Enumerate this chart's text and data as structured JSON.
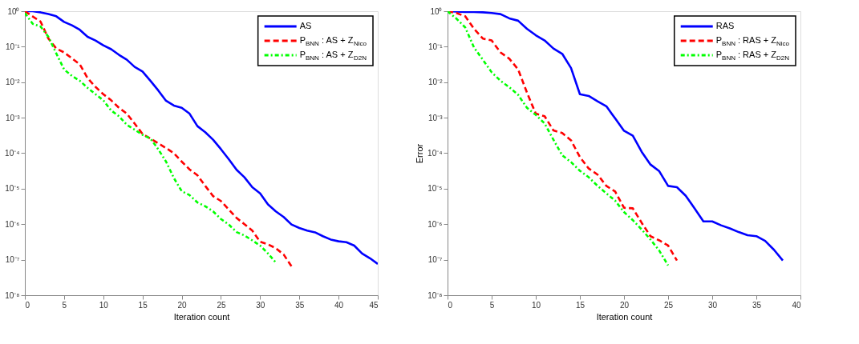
{
  "chart_data": [
    {
      "type": "line",
      "xlabel": "Iteration count",
      "log": "y",
      "grid": false,
      "legend": "top right",
      "x": [
        0,
        1,
        2,
        3,
        4,
        5,
        6,
        7,
        8,
        9,
        10,
        11,
        12,
        13,
        14,
        15,
        16,
        17,
        18,
        19,
        20,
        21,
        22,
        23,
        24,
        25,
        26,
        27,
        28,
        29,
        30,
        31,
        32,
        33,
        34,
        35,
        36,
        37,
        38,
        39,
        40,
        41,
        42,
        43,
        44,
        45
      ],
      "xlim": [
        0,
        45
      ],
      "xticks": [
        0,
        5,
        10,
        15,
        20,
        25,
        30,
        35,
        40,
        45
      ],
      "ylim": [
        1e-08,
        1
      ],
      "yticks": [
        {
          "value": 1e-08,
          "label": "10⁻⁸"
        },
        {
          "value": 1e-07,
          "label": "10⁻⁷"
        },
        {
          "value": 1e-06,
          "label": "10⁻⁶"
        },
        {
          "value": 1e-05,
          "label": "10⁻⁵"
        },
        {
          "value": 0.0001,
          "label": "10⁻⁴"
        },
        {
          "value": 0.001,
          "label": "10⁻³"
        },
        {
          "value": 0.01,
          "label": "10⁻²"
        },
        {
          "value": 0.1,
          "label": "10⁻¹"
        },
        {
          "value": 1,
          "label": "10⁰"
        }
      ],
      "series": [
        {
          "name": "AS",
          "color": "#0000ff",
          "line_style": "solid",
          "values": [
            1,
            1,
            0.93,
            0.83,
            0.72,
            0.5,
            0.4,
            0.3,
            0.19,
            0.15,
            0.11,
            0.085,
            0.059,
            0.043,
            0.027,
            0.02,
            0.011,
            0.0059,
            0.003,
            0.0022,
            0.0019,
            0.0013,
            0.00058,
            0.00039,
            0.00024,
            0.00013,
            6.8e-05,
            3.4e-05,
            2.1e-05,
            1.1e-05,
            7.4e-06,
            3.6e-06,
            2.3e-06,
            1.6e-06,
            9.8e-07,
            7.8e-07,
            6.6e-07,
            5.9e-07,
            4.6e-07,
            3.7e-07,
            3.3e-07,
            3.1e-07,
            2.5e-07,
            1.5e-07,
            1.1e-07,
            7.6e-08
          ]
        },
        {
          "name": "P$_{BNN}$ : AS + Z$_{Nico}$",
          "color": "#ff0000",
          "line_style": "dashed",
          "x": [
            0,
            1,
            2,
            3,
            4,
            5,
            6,
            7,
            8,
            9,
            10,
            11,
            12,
            13,
            14,
            15,
            16,
            17,
            18,
            19,
            20,
            21,
            22,
            23,
            24,
            25,
            26,
            27,
            28,
            29,
            30,
            31,
            32,
            33,
            34
          ],
          "values": [
            1,
            0.71,
            0.51,
            0.17,
            0.089,
            0.069,
            0.047,
            0.032,
            0.013,
            0.0074,
            0.0046,
            0.0031,
            0.0019,
            0.0013,
            0.00068,
            0.00035,
            0.00026,
            0.00019,
            0.00014,
            0.0001,
            5.8e-05,
            3.5e-05,
            2.4e-05,
            1.2e-05,
            6.2e-06,
            4.5e-06,
            2.6e-06,
            1.5e-06,
            1e-06,
            6.6e-07,
            3.2e-07,
            2.7e-07,
            2.1e-07,
            1.4e-07,
            6.5e-08
          ]
        },
        {
          "name": "P$_{BNN}$ : AS + Z$_{D2N}$",
          "color": "#00ff00",
          "line_style": "dashdot",
          "x": [
            0,
            1,
            2,
            3,
            4,
            5,
            6,
            7,
            8,
            9,
            10,
            11,
            12,
            13,
            14,
            15,
            16,
            17,
            18,
            19,
            20,
            21,
            22,
            23,
            24,
            25,
            26,
            27,
            28,
            29,
            30,
            31,
            32
          ],
          "values": [
            0.89,
            0.44,
            0.37,
            0.19,
            0.065,
            0.023,
            0.015,
            0.011,
            0.0069,
            0.0046,
            0.0031,
            0.0016,
            0.0011,
            0.00063,
            0.00046,
            0.00033,
            0.00026,
            0.00013,
            5.8e-05,
            2e-05,
            8.5e-06,
            6.6e-06,
            4.1e-06,
            3.2e-06,
            2.3e-06,
            1.4e-06,
            9.8e-07,
            6e-07,
            4.8e-07,
            3.5e-07,
            2.5e-07,
            1.5e-07,
            8.3e-08
          ]
        }
      ]
    },
    {
      "type": "line",
      "xlabel": "Iteration count",
      "ylabel": "Error",
      "log": "y",
      "grid": false,
      "legend": "top right",
      "x": [
        0,
        1,
        2,
        3,
        4,
        5,
        6,
        7,
        8,
        9,
        10,
        11,
        12,
        13,
        14,
        15,
        16,
        17,
        18,
        19,
        20,
        21,
        22,
        23,
        24,
        25,
        26,
        27,
        28,
        29,
        30,
        31,
        32,
        33,
        34,
        35,
        36,
        37,
        38
      ],
      "xlim": [
        0,
        40
      ],
      "xticks": [
        0,
        5,
        10,
        15,
        20,
        25,
        30,
        35,
        40
      ],
      "ylim": [
        1e-08,
        1
      ],
      "yticks": [
        {
          "value": 1e-08,
          "label": "10⁻⁸"
        },
        {
          "value": 1e-07,
          "label": "10⁻⁷"
        },
        {
          "value": 1e-06,
          "label": "10⁻⁶"
        },
        {
          "value": 1e-05,
          "label": "10⁻⁵"
        },
        {
          "value": 0.0001,
          "label": "10⁻⁴"
        },
        {
          "value": 0.001,
          "label": "10⁻³"
        },
        {
          "value": 0.01,
          "label": "10⁻²"
        },
        {
          "value": 0.1,
          "label": "10⁻¹"
        },
        {
          "value": 1,
          "label": "10⁰"
        }
      ],
      "series": [
        {
          "name": "RAS",
          "color": "#0000ff",
          "line_style": "solid",
          "values": [
            1,
            0.98,
            0.95,
            0.95,
            0.93,
            0.89,
            0.83,
            0.63,
            0.54,
            0.32,
            0.21,
            0.15,
            0.089,
            0.063,
            0.025,
            0.0046,
            0.0041,
            0.0029,
            0.0021,
            0.00095,
            0.00043,
            0.00031,
            0.00011,
            4.8e-05,
            3.1e-05,
            1.2e-05,
            1.1e-05,
            6.3e-06,
            2.8e-06,
            1.2e-06,
            1.2e-06,
            9.3e-07,
            7.6e-07,
            6e-07,
            4.9e-07,
            4.6e-07,
            3.4e-07,
            1.9e-07,
            9.5e-08
          ]
        },
        {
          "name": "P$_{BNN}$ : RAS + Z$_{Nico}$",
          "color": "#ff0000",
          "line_style": "dashed",
          "x": [
            0,
            1,
            2,
            3,
            4,
            5,
            6,
            7,
            8,
            9,
            10,
            11,
            12,
            13,
            14,
            15,
            16,
            17,
            18,
            19,
            20,
            21,
            22,
            23,
            24,
            25,
            26
          ],
          "values": [
            1,
            0.89,
            0.72,
            0.32,
            0.17,
            0.15,
            0.069,
            0.046,
            0.023,
            0.0051,
            0.0013,
            0.0011,
            0.00044,
            0.00037,
            0.00023,
            7.8e-05,
            3.7e-05,
            2.5e-05,
            1.2e-05,
            8.3e-06,
            2.9e-06,
            2.8e-06,
            1.1e-06,
            4.6e-07,
            3.5e-07,
            2.5e-07,
            9.5e-08
          ]
        },
        {
          "name": "P$_{BNN}$ : RAS + Z$_{D2N}$",
          "color": "#00ff00",
          "line_style": "dashdot",
          "x": [
            0,
            1,
            2,
            3,
            4,
            5,
            6,
            7,
            8,
            9,
            10,
            11,
            12,
            13,
            14,
            15,
            16,
            17,
            18,
            19,
            20,
            21,
            22,
            23,
            24,
            25
          ],
          "values": [
            1,
            0.62,
            0.35,
            0.095,
            0.043,
            0.019,
            0.011,
            0.0072,
            0.0044,
            0.0019,
            0.0012,
            0.00069,
            0.00024,
            8.7e-05,
            5.6e-05,
            3.2e-05,
            2.1e-05,
            1.2e-05,
            7.4e-06,
            4.6e-06,
            2.2e-06,
            1.3e-06,
            7.1e-07,
            3.7e-07,
            1.8e-07,
            6.9e-08
          ]
        }
      ]
    }
  ]
}
